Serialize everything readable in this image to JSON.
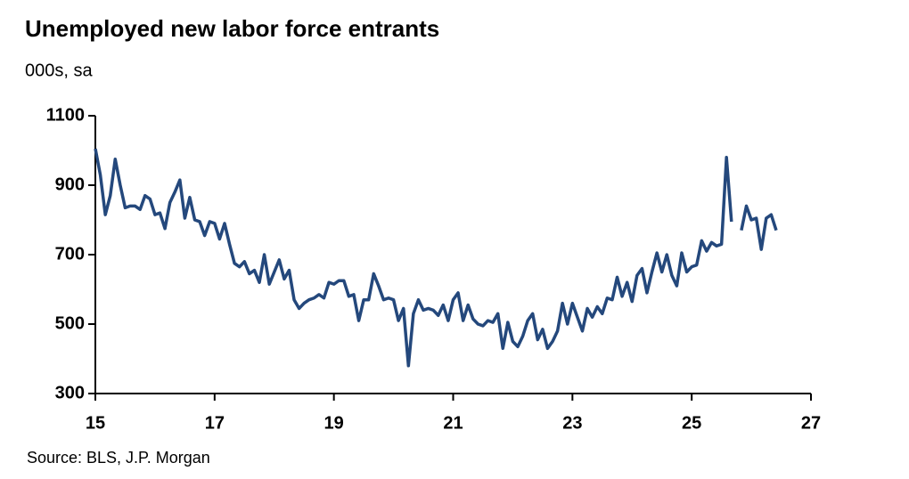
{
  "chart_data": {
    "type": "line",
    "title": "Unemployed new labor force entrants",
    "subtitle": "000s, sa",
    "source": "Source: BLS, J.P. Morgan",
    "color": "#24487c",
    "xlim": [
      15,
      27
    ],
    "xticks": [
      15,
      17,
      19,
      21,
      23,
      25,
      27
    ],
    "ylim": [
      300,
      1100
    ],
    "yticks": [
      300,
      500,
      700,
      900,
      1100
    ],
    "x": [
      15,
      15.083,
      15.167,
      15.25,
      15.333,
      15.417,
      15.5,
      15.583,
      15.667,
      15.75,
      15.833,
      15.917,
      16,
      16.083,
      16.167,
      16.25,
      16.333,
      16.417,
      16.5,
      16.583,
      16.667,
      16.75,
      16.833,
      16.917,
      17,
      17.083,
      17.167,
      17.25,
      17.333,
      17.417,
      17.5,
      17.583,
      17.667,
      17.75,
      17.833,
      17.917,
      18,
      18.083,
      18.167,
      18.25,
      18.333,
      18.417,
      18.5,
      18.583,
      18.667,
      18.75,
      18.833,
      18.917,
      19,
      19.083,
      19.167,
      19.25,
      19.333,
      19.417,
      19.5,
      19.583,
      19.667,
      19.75,
      19.833,
      19.917,
      20,
      20.083,
      20.167,
      20.25,
      20.333,
      20.417,
      20.5,
      20.583,
      20.667,
      20.75,
      20.833,
      20.917,
      21,
      21.083,
      21.167,
      21.25,
      21.333,
      21.417,
      21.5,
      21.583,
      21.667,
      21.75,
      21.833,
      21.917,
      22,
      22.083,
      22.167,
      22.25,
      22.333,
      22.417,
      22.5,
      22.583,
      22.667,
      22.75,
      22.833,
      22.917,
      23,
      23.083,
      23.167,
      23.25,
      23.333,
      23.417,
      23.5,
      23.583,
      23.667,
      23.75,
      23.833,
      23.917,
      24,
      24.083,
      24.167,
      24.25,
      24.333,
      24.417,
      24.5,
      24.583,
      24.667,
      24.75,
      24.833,
      24.917,
      25,
      25.083,
      25.167,
      25.25,
      25.333,
      25.417,
      25.5,
      25.583,
      25.667,
      25.75,
      25.833,
      25.917,
      26,
      26.083,
      26.167,
      26.25,
      26.333,
      26.417
    ],
    "values": [
      1005,
      930,
      815,
      870,
      975,
      900,
      835,
      840,
      840,
      830,
      870,
      860,
      815,
      820,
      775,
      850,
      880,
      915,
      805,
      865,
      800,
      795,
      755,
      795,
      790,
      745,
      790,
      730,
      675,
      665,
      680,
      645,
      655,
      620,
      700,
      615,
      650,
      685,
      630,
      655,
      570,
      545,
      560,
      570,
      575,
      585,
      575,
      620,
      615,
      625,
      625,
      580,
      585,
      510,
      570,
      570,
      645,
      610,
      570,
      575,
      570,
      510,
      545,
      380,
      530,
      570,
      540,
      545,
      540,
      525,
      555,
      510,
      570,
      590,
      510,
      555,
      515,
      500,
      495,
      510,
      505,
      530,
      430,
      505,
      450,
      435,
      465,
      510,
      530,
      455,
      485,
      430,
      450,
      480,
      560,
      500,
      560,
      520,
      480,
      545,
      520,
      550,
      530,
      575,
      570,
      635,
      580,
      620,
      565,
      640,
      660,
      590,
      650,
      705,
      650,
      700,
      640,
      610,
      705,
      650,
      665,
      670,
      740,
      710,
      735,
      725,
      730,
      980,
      795,
      null,
      770,
      840,
      800,
      805,
      715,
      805,
      815,
      770
    ]
  }
}
